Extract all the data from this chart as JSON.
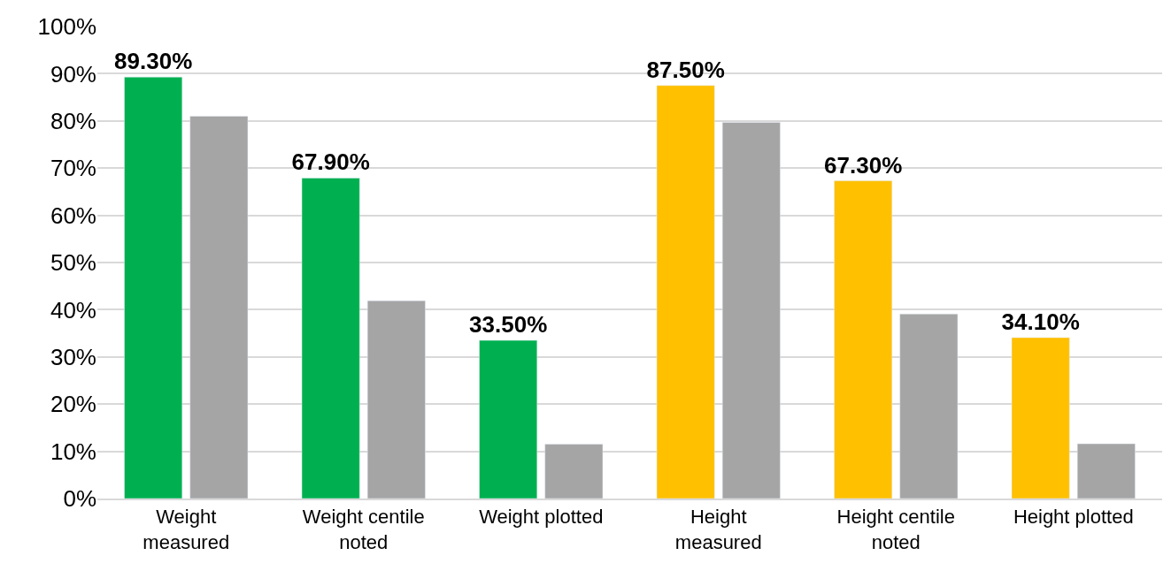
{
  "chart_data": {
    "type": "bar",
    "categories": [
      "Weight measured",
      "Weight centile noted",
      "Weight plotted",
      "Height measured",
      "Height centile noted",
      "Height plotted"
    ],
    "series": [
      {
        "colors": [
          "#00b050",
          "#00b050",
          "#00b050",
          "#ffc000",
          "#ffc000",
          "#ffc000"
        ],
        "values": [
          89.3,
          67.9,
          33.5,
          87.5,
          67.3,
          34.1
        ],
        "value_labels": [
          "89.30%",
          "67.90%",
          "33.50%",
          "87.50%",
          "67.30%",
          "34.10%"
        ]
      },
      {
        "color": "#a5a5a5",
        "values": [
          81.0,
          41.9,
          11.5,
          79.7,
          39.1,
          11.6
        ]
      }
    ],
    "ylim": [
      0,
      100
    ],
    "yticks": [
      {
        "value": 0,
        "label": "0%"
      },
      {
        "value": 10,
        "label": "10%"
      },
      {
        "value": 20,
        "label": "20%"
      },
      {
        "value": 30,
        "label": "30%"
      },
      {
        "value": 40,
        "label": "40%"
      },
      {
        "value": 50,
        "label": "50%"
      },
      {
        "value": 60,
        "label": "60%"
      },
      {
        "value": 70,
        "label": "70%"
      },
      {
        "value": 80,
        "label": "80%"
      },
      {
        "value": 90,
        "label": "90%"
      },
      {
        "value": 100,
        "label": "100%"
      }
    ],
    "grid": "y"
  }
}
